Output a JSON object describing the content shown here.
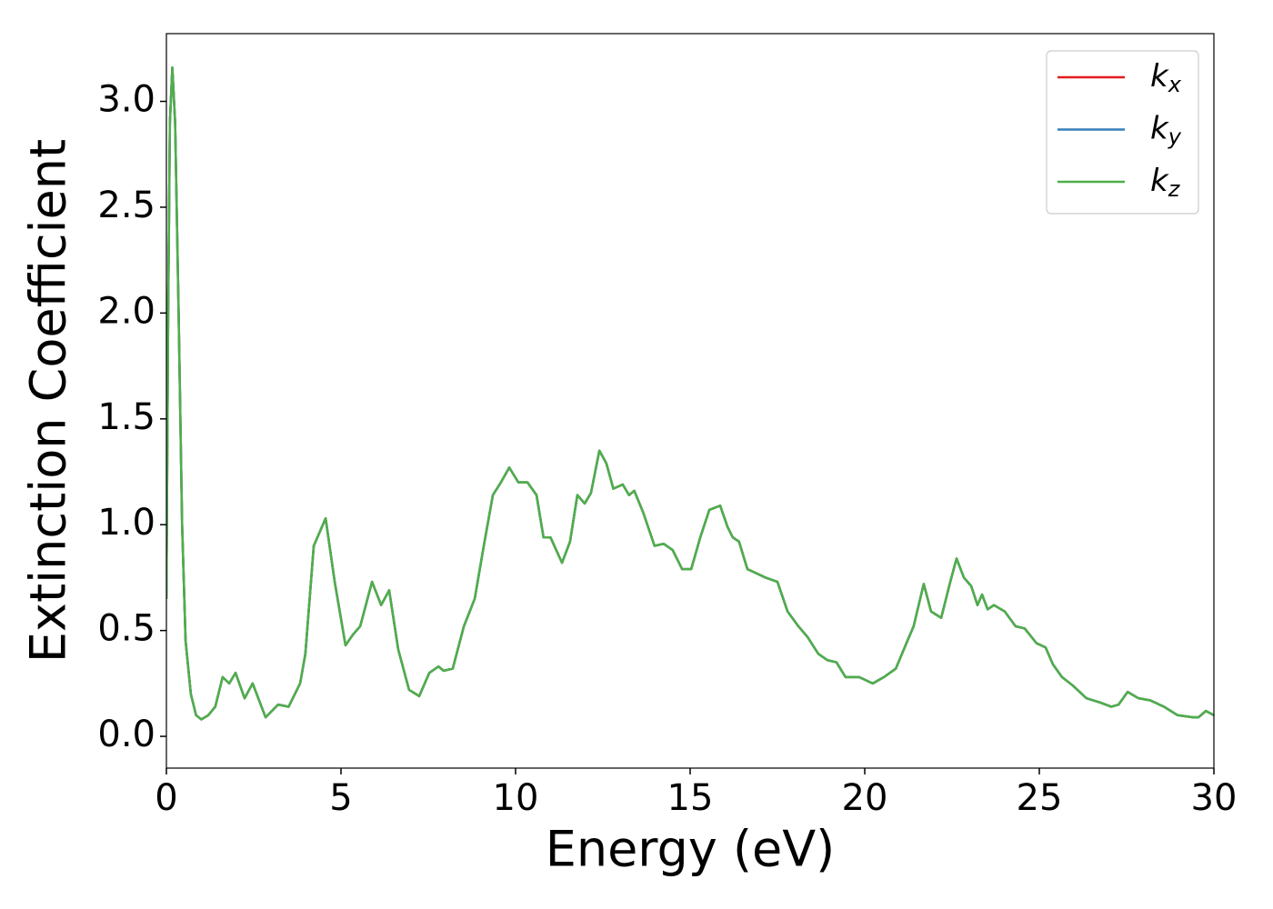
{
  "chart_data": {
    "type": "line",
    "xlabel": "Energy (eV)",
    "ylabel": "Extinction Coefficient",
    "xlim": [
      0,
      30
    ],
    "xticks": [
      0,
      5,
      10,
      15,
      20,
      25,
      30
    ],
    "ylim": [
      -0.15,
      3.32
    ],
    "yticks": [
      {
        "value": 0,
        "label": "0.0"
      },
      0.5,
      {
        "value": 1,
        "label": "1.0"
      },
      1.5,
      {
        "value": 2,
        "label": "2.0"
      },
      2.5,
      {
        "value": 3,
        "label": "3.0"
      }
    ],
    "legend": "upper right",
    "x": [
      0,
      0.05,
      0.1,
      0.17,
      0.25,
      0.35,
      0.45,
      0.55,
      0.7,
      0.85,
      1.0,
      1.2,
      1.4,
      1.61,
      1.8,
      1.98,
      2.24,
      2.47,
      2.84,
      3.2,
      3.5,
      3.83,
      3.98,
      4.22,
      4.56,
      4.82,
      5.13,
      5.34,
      5.55,
      5.89,
      6.15,
      6.38,
      6.64,
      6.95,
      7.24,
      7.53,
      7.79,
      7.94,
      8.2,
      8.52,
      8.83,
      9.09,
      9.35,
      9.58,
      9.82,
      10.08,
      10.34,
      10.6,
      10.8,
      11.0,
      11.33,
      11.56,
      11.77,
      11.98,
      12.16,
      12.4,
      12.6,
      12.8,
      13.07,
      13.25,
      13.4,
      13.65,
      13.98,
      14.24,
      14.5,
      14.77,
      15.03,
      15.29,
      15.55,
      15.86,
      16.07,
      16.22,
      16.4,
      16.64,
      16.9,
      17.16,
      17.5,
      17.79,
      18.1,
      18.36,
      18.67,
      18.93,
      19.19,
      19.45,
      19.84,
      20.23,
      20.55,
      20.89,
      21.22,
      21.4,
      21.69,
      21.9,
      22.19,
      22.45,
      22.63,
      22.84,
      23.05,
      23.23,
      23.36,
      23.52,
      23.7,
      24.01,
      24.32,
      24.58,
      24.92,
      25.18,
      25.39,
      25.65,
      25.96,
      26.35,
      26.74,
      27.06,
      27.27,
      27.53,
      27.84,
      28.18,
      28.57,
      28.96,
      29.4,
      29.56,
      29.77,
      30
    ],
    "series": [
      {
        "name": "kx",
        "color": "#e41a1c",
        "values": [
          0.65,
          2.0,
          2.9,
          3.16,
          2.9,
          2.0,
          1.0,
          0.45,
          0.2,
          0.1,
          0.08,
          0.1,
          0.14,
          0.28,
          0.25,
          0.3,
          0.18,
          0.25,
          0.09,
          0.15,
          0.14,
          0.25,
          0.39,
          0.9,
          1.03,
          0.73,
          0.43,
          0.48,
          0.52,
          0.73,
          0.62,
          0.69,
          0.41,
          0.22,
          0.19,
          0.3,
          0.33,
          0.31,
          0.32,
          0.52,
          0.65,
          0.9,
          1.14,
          1.2,
          1.27,
          1.2,
          1.2,
          1.14,
          0.94,
          0.94,
          0.82,
          0.92,
          1.14,
          1.1,
          1.15,
          1.35,
          1.29,
          1.17,
          1.19,
          1.14,
          1.16,
          1.06,
          0.9,
          0.91,
          0.88,
          0.79,
          0.79,
          0.94,
          1.07,
          1.09,
          0.99,
          0.94,
          0.92,
          0.79,
          0.77,
          0.75,
          0.73,
          0.59,
          0.52,
          0.47,
          0.39,
          0.36,
          0.35,
          0.28,
          0.28,
          0.25,
          0.28,
          0.32,
          0.45,
          0.52,
          0.72,
          0.59,
          0.56,
          0.73,
          0.84,
          0.75,
          0.71,
          0.62,
          0.67,
          0.6,
          0.62,
          0.59,
          0.52,
          0.51,
          0.44,
          0.42,
          0.34,
          0.28,
          0.24,
          0.18,
          0.16,
          0.14,
          0.15,
          0.21,
          0.18,
          0.17,
          0.14,
          0.1,
          0.09,
          0.09,
          0.12,
          0.1
        ]
      },
      {
        "name": "ky",
        "color": "#377eb8",
        "values": [
          0.65,
          2.0,
          2.9,
          3.16,
          2.9,
          2.0,
          1.0,
          0.45,
          0.2,
          0.1,
          0.08,
          0.1,
          0.14,
          0.28,
          0.25,
          0.3,
          0.18,
          0.25,
          0.09,
          0.15,
          0.14,
          0.25,
          0.39,
          0.9,
          1.03,
          0.73,
          0.43,
          0.48,
          0.52,
          0.73,
          0.62,
          0.69,
          0.41,
          0.22,
          0.19,
          0.3,
          0.33,
          0.31,
          0.32,
          0.52,
          0.65,
          0.9,
          1.14,
          1.2,
          1.27,
          1.2,
          1.2,
          1.14,
          0.94,
          0.94,
          0.82,
          0.92,
          1.14,
          1.1,
          1.15,
          1.35,
          1.29,
          1.17,
          1.19,
          1.14,
          1.16,
          1.06,
          0.9,
          0.91,
          0.88,
          0.79,
          0.79,
          0.94,
          1.07,
          1.09,
          0.99,
          0.94,
          0.92,
          0.79,
          0.77,
          0.75,
          0.73,
          0.59,
          0.52,
          0.47,
          0.39,
          0.36,
          0.35,
          0.28,
          0.28,
          0.25,
          0.28,
          0.32,
          0.45,
          0.52,
          0.72,
          0.59,
          0.56,
          0.73,
          0.84,
          0.75,
          0.71,
          0.62,
          0.67,
          0.6,
          0.62,
          0.59,
          0.52,
          0.51,
          0.44,
          0.42,
          0.34,
          0.28,
          0.24,
          0.18,
          0.16,
          0.14,
          0.15,
          0.21,
          0.18,
          0.17,
          0.14,
          0.1,
          0.09,
          0.09,
          0.12,
          0.1
        ]
      },
      {
        "name": "kz",
        "color": "#4daf4a",
        "values": [
          0.65,
          2.0,
          2.9,
          3.16,
          2.9,
          2.0,
          1.0,
          0.45,
          0.2,
          0.1,
          0.08,
          0.1,
          0.14,
          0.28,
          0.25,
          0.3,
          0.18,
          0.25,
          0.09,
          0.15,
          0.14,
          0.25,
          0.39,
          0.9,
          1.03,
          0.73,
          0.43,
          0.48,
          0.52,
          0.73,
          0.62,
          0.69,
          0.41,
          0.22,
          0.19,
          0.3,
          0.33,
          0.31,
          0.32,
          0.52,
          0.65,
          0.9,
          1.14,
          1.2,
          1.27,
          1.2,
          1.2,
          1.14,
          0.94,
          0.94,
          0.82,
          0.92,
          1.14,
          1.1,
          1.15,
          1.35,
          1.29,
          1.17,
          1.19,
          1.14,
          1.16,
          1.06,
          0.9,
          0.91,
          0.88,
          0.79,
          0.79,
          0.94,
          1.07,
          1.09,
          0.99,
          0.94,
          0.92,
          0.79,
          0.77,
          0.75,
          0.73,
          0.59,
          0.52,
          0.47,
          0.39,
          0.36,
          0.35,
          0.28,
          0.28,
          0.25,
          0.28,
          0.32,
          0.45,
          0.52,
          0.72,
          0.59,
          0.56,
          0.73,
          0.84,
          0.75,
          0.71,
          0.62,
          0.67,
          0.6,
          0.62,
          0.59,
          0.52,
          0.51,
          0.44,
          0.42,
          0.34,
          0.28,
          0.24,
          0.18,
          0.16,
          0.14,
          0.15,
          0.21,
          0.18,
          0.17,
          0.14,
          0.1,
          0.09,
          0.09,
          0.12,
          0.1
        ]
      }
    ]
  }
}
